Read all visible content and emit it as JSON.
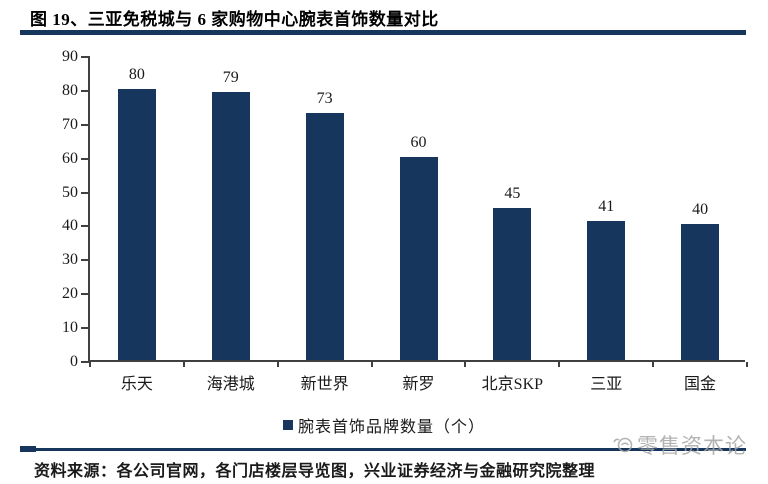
{
  "figure": {
    "title": "图 19、三亚免税城与 6 家购物中心腕表首饰数量对比",
    "source": "资料来源：各公司官网，各门店楼层导览图，兴业证券经济与金融研究院整理",
    "watermark": "零售资本论"
  },
  "colors": {
    "navy": "#17365D",
    "axis": "#404040",
    "text": "#1a1a1a",
    "watermark_gray": "#a6a6a6"
  },
  "chart_data": {
    "type": "bar",
    "title": "三亚免税城与6家购物中心腕表首饰数量对比",
    "categories": [
      "乐天",
      "海港城",
      "新世界",
      "新罗",
      "北京SKP",
      "三亚",
      "国金"
    ],
    "series": [
      {
        "name": "腕表首饰品牌数量（个）",
        "values": [
          80,
          79,
          73,
          60,
          45,
          41,
          40
        ]
      }
    ],
    "value_labels": [
      80,
      79,
      73,
      60,
      45,
      41,
      40
    ],
    "xlabel": "",
    "ylabel": "",
    "ylim": [
      0,
      90
    ],
    "y_ticks": [
      0,
      10,
      20,
      30,
      40,
      50,
      60,
      70,
      80,
      90
    ],
    "grid": false,
    "legend_position": "bottom",
    "bar_color": "#17365D"
  }
}
